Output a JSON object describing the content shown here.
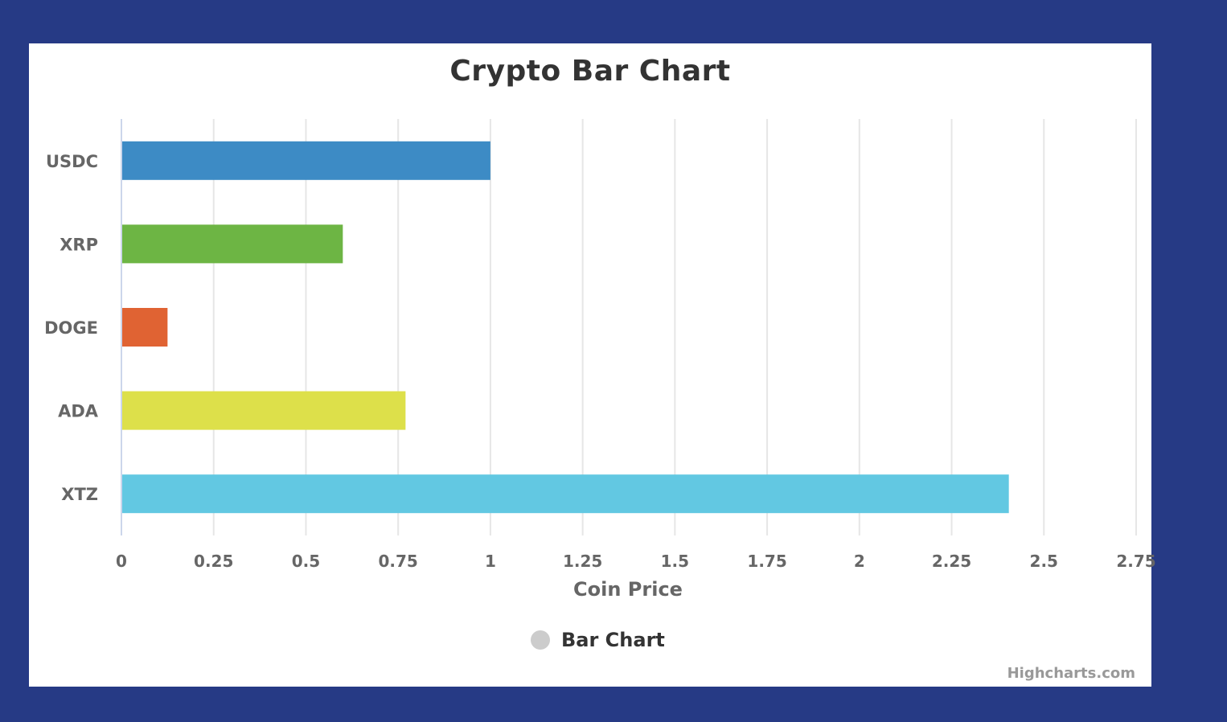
{
  "chart_data": {
    "type": "bar",
    "orientation": "horizontal",
    "title": "Crypto Bar Chart",
    "xlabel": "Coin Price",
    "categories": [
      "USDC",
      "XRP",
      "DOGE",
      "ADA",
      "XTZ"
    ],
    "values": [
      1.0,
      0.6,
      0.125,
      0.77,
      2.405
    ],
    "colors": [
      "#3d8bc5",
      "#6db544",
      "#e06333",
      "#dde04a",
      "#62c8e2"
    ],
    "xlim": [
      0,
      2.75
    ],
    "ticks": [
      "0",
      "0.25",
      "0.5",
      "0.75",
      "1",
      "1.25",
      "1.5",
      "1.75",
      "2",
      "2.25",
      "2.5",
      "2.75"
    ],
    "tick_values": [
      0,
      0.25,
      0.5,
      0.75,
      1,
      1.25,
      1.5,
      1.75,
      2,
      2.25,
      2.5,
      2.75
    ],
    "grid": true,
    "legend_position": "bottom-center",
    "series": [
      {
        "name": "Bar Chart",
        "values": [
          1.0,
          0.6,
          0.125,
          0.77,
          2.405
        ]
      }
    ]
  },
  "legend": {
    "label": "Bar Chart",
    "dot_color": "#cccccc"
  },
  "credits": "Highcharts.com"
}
